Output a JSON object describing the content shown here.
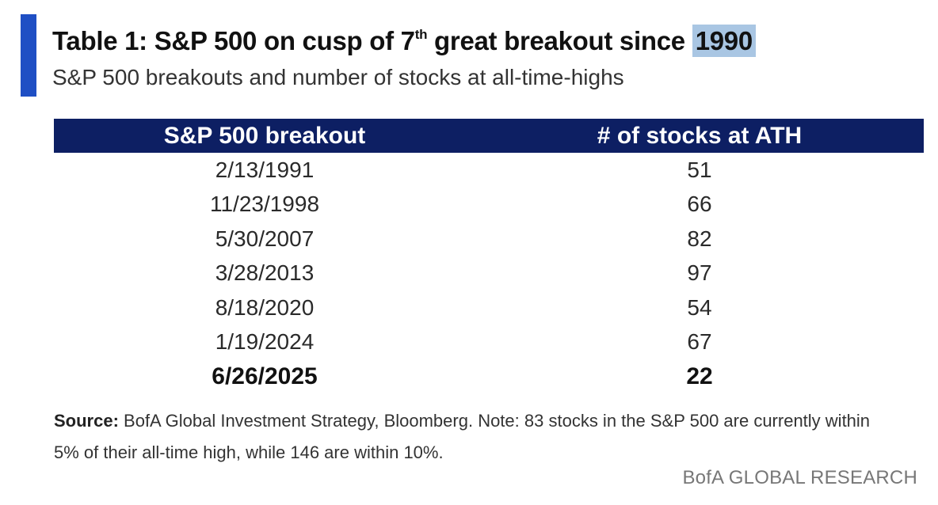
{
  "title": {
    "prefix": "Table 1: S&P 500 on cusp of 7",
    "superscript": "th",
    "middle": " great breakout since ",
    "highlighted": "1990"
  },
  "subtitle": "S&P 500 breakouts and number of stocks at all-time-highs",
  "table": {
    "headers": [
      "S&P 500 breakout",
      "# of stocks at ATH"
    ],
    "rows": [
      {
        "date": "2/13/1991",
        "stocks": "51"
      },
      {
        "date": "11/23/1998",
        "stocks": "66"
      },
      {
        "date": "5/30/2007",
        "stocks": "82"
      },
      {
        "date": "3/28/2013",
        "stocks": "97"
      },
      {
        "date": "8/18/2020",
        "stocks": "54"
      },
      {
        "date": "1/19/2024",
        "stocks": "67"
      },
      {
        "date": "6/26/2025",
        "stocks": "22"
      }
    ]
  },
  "source": {
    "label": "Source:",
    "text": " BofA Global Investment Strategy, Bloomberg. Note: 83 stocks in the S&P 500 are currently within 5% of their all-time high, while 146 are within 10%."
  },
  "brand": "BofA GLOBAL RESEARCH",
  "colors": {
    "accent_bar": "#1f4fc4",
    "header_bg": "#0d1f63",
    "highlight": "#a9c6e3"
  }
}
